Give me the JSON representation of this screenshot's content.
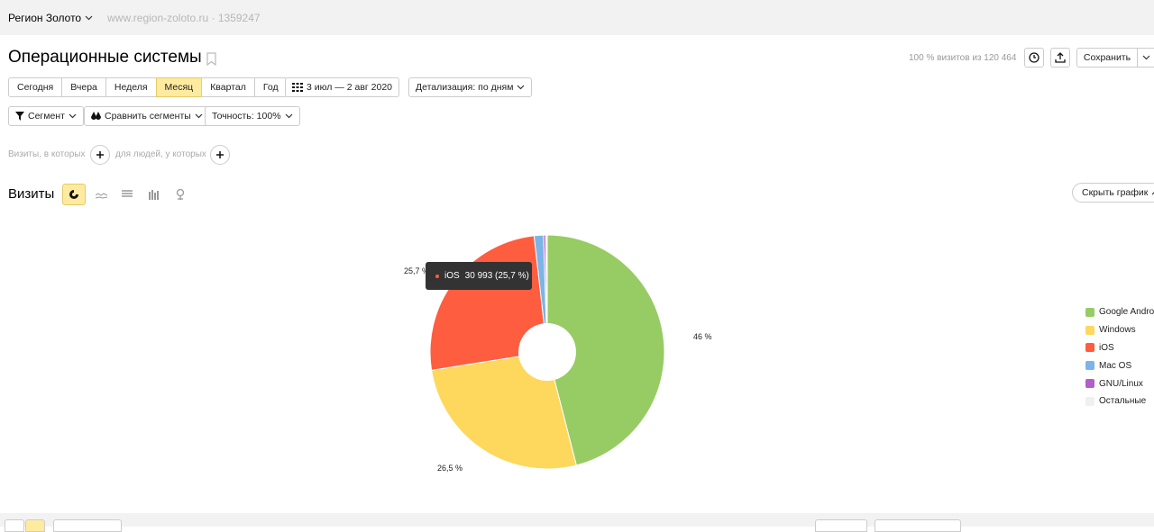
{
  "header": {
    "counter_name": "Регион Золото",
    "site": "www.region-zoloto.ru",
    "separator": "·",
    "counter_id": "1359247"
  },
  "report": {
    "title": "Операционные системы",
    "visits_info": "100 % визитов из 120 464",
    "save_label": "Сохранить"
  },
  "periods": [
    {
      "label": "Сегодня",
      "active": false
    },
    {
      "label": "Вчера",
      "active": false
    },
    {
      "label": "Неделя",
      "active": false
    },
    {
      "label": "Месяц",
      "active": true
    },
    {
      "label": "Квартал",
      "active": false
    },
    {
      "label": "Год",
      "active": false
    }
  ],
  "date_range": "3 июл — 2 авг 2020",
  "detail": "Детализация: по дням",
  "segment": "Сегмент",
  "compare": "Сравнить сегменты",
  "accuracy": "Точность: 100%",
  "filters": {
    "visits_where": "Визиты, в которых",
    "people_where": "для людей, у которых"
  },
  "chart_header": {
    "title": "Визиты",
    "hide_label": "Скрыть график"
  },
  "tooltip": {
    "name": "iOS",
    "value": "30 993 (25,7 %)",
    "color": "#ff5d3f"
  },
  "chart_data": {
    "type": "pie",
    "donut": true,
    "slices": [
      {
        "name": "Google Android",
        "value": 46.0,
        "label": "46 %",
        "color": "#97cc64"
      },
      {
        "name": "Windows",
        "value": 26.5,
        "label": "26,5 %",
        "color": "#fed85d"
      },
      {
        "name": "iOS",
        "value": 25.7,
        "label": "25,7 %",
        "color": "#ff5d3f"
      },
      {
        "name": "Mac OS",
        "value": 1.3,
        "label": "",
        "color": "#7db4e6"
      },
      {
        "name": "GNU/Linux",
        "value": 0.3,
        "label": "",
        "color": "#b25fc7"
      },
      {
        "name": "Остальные",
        "value": 0.2,
        "label": "",
        "color": "#f0f0f0"
      }
    ],
    "legend_position": "right"
  }
}
